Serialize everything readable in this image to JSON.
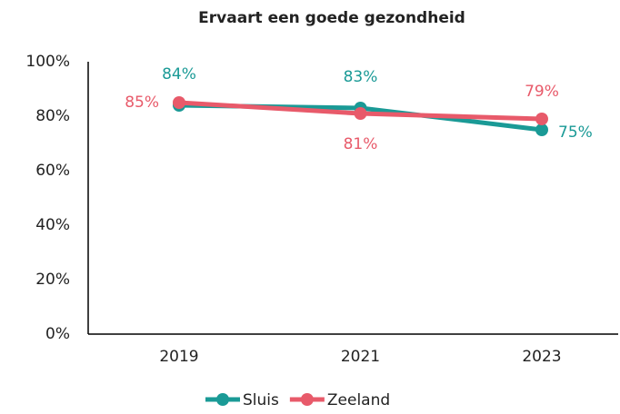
{
  "chart_data": {
    "type": "line",
    "title": "Ervaart een goede gezondheid",
    "categories": [
      "2019",
      "2021",
      "2023"
    ],
    "series": [
      {
        "name": "Sluis",
        "color": "#1a9a96",
        "values": [
          84,
          83,
          75
        ],
        "value_labels": [
          "84%",
          "83%",
          "75%"
        ]
      },
      {
        "name": "Zeeland",
        "color": "#e85a6a",
        "values": [
          85,
          81,
          79
        ],
        "value_labels": [
          "85%",
          "81%",
          "79%"
        ]
      }
    ],
    "ylim": [
      0,
      100
    ],
    "yticks": [
      {
        "value": 0,
        "label": "0%"
      },
      {
        "value": 20,
        "label": "20%"
      },
      {
        "value": 40,
        "label": "40%"
      },
      {
        "value": 60,
        "label": "60%"
      },
      {
        "value": 80,
        "label": "80%"
      },
      {
        "value": 100,
        "label": "100%"
      }
    ],
    "grid": false,
    "legend": "bottom"
  }
}
